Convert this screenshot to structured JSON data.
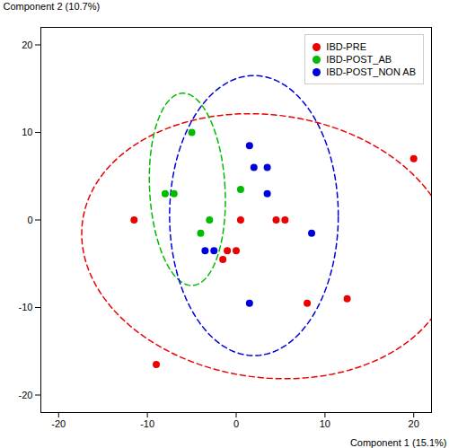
{
  "chart_data": {
    "type": "scatter",
    "xlabel": "Component 1 (15.1%)",
    "ylabel": "Component 2 (10.7%)",
    "xlim": [
      -22,
      22
    ],
    "ylim": [
      -22,
      22
    ],
    "xticks": [
      -20,
      -10,
      0,
      10,
      20
    ],
    "yticks": [
      -20,
      -10,
      0,
      10,
      20
    ],
    "grid": false,
    "legend": "upper right",
    "series": [
      {
        "name": "IBD-PRE",
        "color": "#ee0000",
        "marker": "circle",
        "line_style": "dashed",
        "values": [
          [
            -11.5,
            0.0
          ],
          [
            -9.0,
            -16.5
          ],
          [
            -1.5,
            -4.5
          ],
          [
            -1.0,
            -3.5
          ],
          [
            0.0,
            -3.5
          ],
          [
            0.5,
            0.0
          ],
          [
            4.5,
            0.0
          ],
          [
            5.5,
            0.0
          ],
          [
            8.0,
            -9.5
          ],
          [
            12.5,
            -9.0
          ],
          [
            20.0,
            7.0
          ]
        ],
        "ellipse": {
          "cx": 3.5,
          "cy": -3.0,
          "width": 42.0,
          "height": 30.0,
          "angle": -8
        }
      },
      {
        "name": "IBD-POST_AB",
        "color": "#00bb00",
        "marker": "circle",
        "line_style": "dashed",
        "values": [
          [
            -8.0,
            3.0
          ],
          [
            -7.0,
            3.0
          ],
          [
            -5.0,
            10.0
          ],
          [
            -4.0,
            -1.5
          ],
          [
            -3.0,
            0.0
          ],
          [
            0.5,
            3.5
          ]
        ],
        "ellipse": {
          "cx": -5.5,
          "cy": 3.5,
          "width": 8.5,
          "height": 22.0,
          "angle": 3
        }
      },
      {
        "name": "IBD-POST_NON AB",
        "color": "#0000dd",
        "marker": "circle",
        "line_style": "dashed",
        "values": [
          [
            -3.5,
            -3.5
          ],
          [
            -2.5,
            -3.5
          ],
          [
            1.5,
            8.5
          ],
          [
            2.0,
            6.0
          ],
          [
            3.5,
            6.0
          ],
          [
            3.5,
            3.0
          ],
          [
            8.5,
            -1.5
          ],
          [
            1.5,
            -9.5
          ]
        ],
        "ellipse": {
          "cx": 2.0,
          "cy": 0.5,
          "width": 19.0,
          "height": 32.0,
          "angle": 0
        }
      }
    ]
  }
}
